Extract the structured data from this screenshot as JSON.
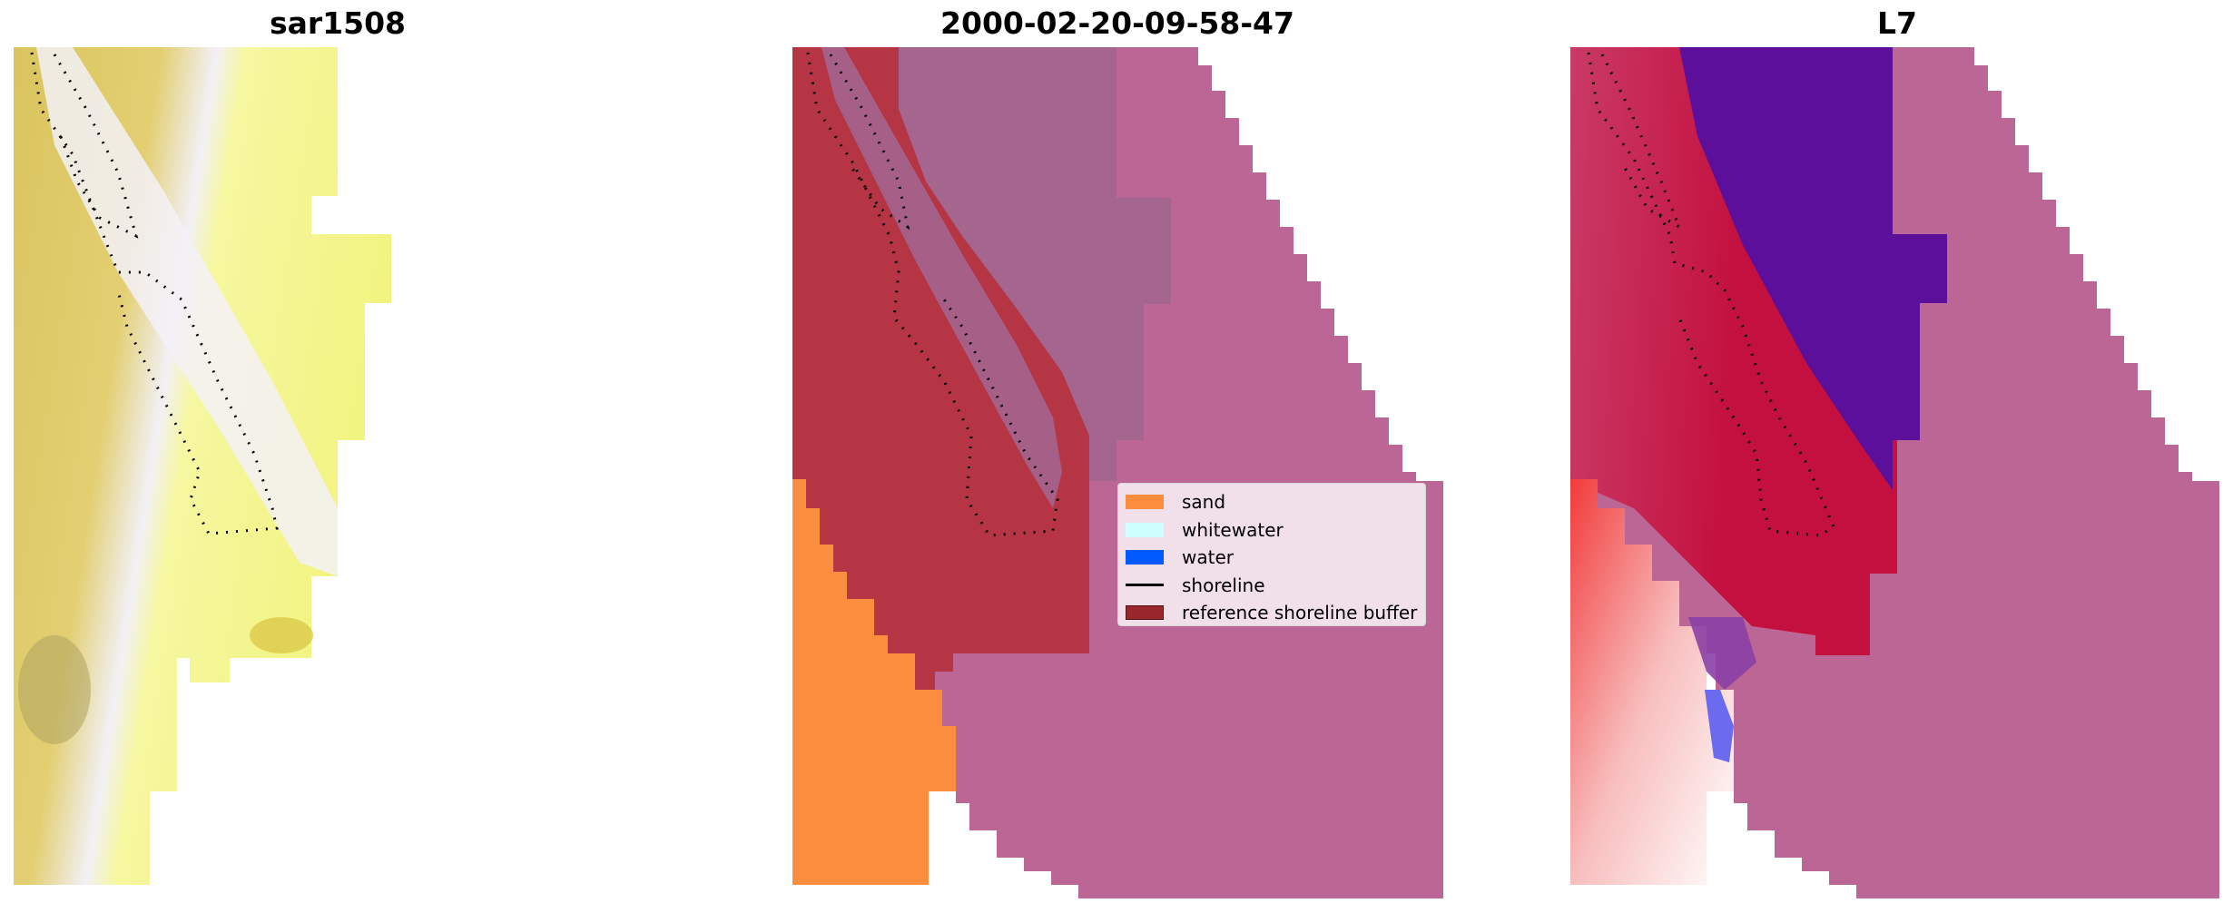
{
  "panels": [
    {
      "title": "sar1508"
    },
    {
      "title": "2000-02-20-09-58-47"
    },
    {
      "title": "L7"
    }
  ],
  "legend": {
    "items": [
      {
        "label": "sand",
        "color": "#FA8D3E",
        "kind": "patch",
        "icon": "sand-swatch"
      },
      {
        "label": "whitewater",
        "color": "#CCFFFF",
        "kind": "patch",
        "icon": "whitewater-swatch"
      },
      {
        "label": "water",
        "color": "#0059FF",
        "kind": "patch",
        "icon": "water-swatch"
      },
      {
        "label": "shoreline",
        "color": "#000000",
        "kind": "line",
        "icon": "shoreline-line"
      },
      {
        "label": "reference shoreline buffer",
        "color": "#99262A",
        "kind": "patch",
        "icon": "buffer-swatch"
      }
    ]
  },
  "colors": {
    "sand_rgb_light": "#F7F785",
    "sand_rgb_dark": "#D9C45E",
    "buffer_overlay": "#B53545",
    "water_class": "#BB6695",
    "land_class": "#A4658F",
    "sand_class": "#FA8D3E",
    "index_purple": "#5B0F9A",
    "index_red": "#C20638"
  }
}
